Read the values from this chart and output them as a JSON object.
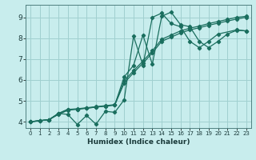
{
  "xlabel": "Humidex (Indice chaleur)",
  "bg_color": "#c8eded",
  "grid_color": "#a0d0d0",
  "line_color": "#1a6e5e",
  "xlim": [
    -0.5,
    23.5
  ],
  "ylim": [
    3.7,
    9.6
  ],
  "xticks": [
    0,
    1,
    2,
    3,
    4,
    5,
    6,
    7,
    8,
    9,
    10,
    11,
    12,
    13,
    14,
    15,
    16,
    17,
    18,
    19,
    20,
    21,
    22,
    23
  ],
  "yticks": [
    4,
    5,
    6,
    7,
    8,
    9
  ],
  "line1_x": [
    0,
    1,
    2,
    3,
    4,
    5,
    6,
    7,
    8,
    9,
    10,
    11,
    12,
    13,
    14,
    15,
    16,
    17,
    18,
    19,
    20,
    21,
    22,
    23
  ],
  "line1_y": [
    4.0,
    4.05,
    4.1,
    4.35,
    4.55,
    4.6,
    4.65,
    4.7,
    4.75,
    4.8,
    5.85,
    6.35,
    6.8,
    7.3,
    7.85,
    8.05,
    8.25,
    8.4,
    8.5,
    8.62,
    8.72,
    8.82,
    8.92,
    9.0
  ],
  "line2_x": [
    0,
    1,
    2,
    3,
    4,
    5,
    6,
    7,
    8,
    9,
    10,
    11,
    12,
    13,
    14,
    15,
    16,
    17,
    18,
    19,
    20,
    21,
    22,
    23
  ],
  "line2_y": [
    4.0,
    4.05,
    4.1,
    4.38,
    4.58,
    4.62,
    4.67,
    4.72,
    4.77,
    4.82,
    5.95,
    6.45,
    6.9,
    7.4,
    7.95,
    8.15,
    8.35,
    8.48,
    8.58,
    8.7,
    8.8,
    8.9,
    9.0,
    9.05
  ],
  "line3_x": [
    0,
    2,
    3,
    4,
    5,
    6,
    7,
    8,
    9,
    10,
    11,
    12,
    13,
    14,
    15,
    16,
    17,
    18,
    19,
    20,
    21,
    22,
    23
  ],
  "line3_y": [
    4.0,
    4.1,
    4.4,
    4.6,
    4.6,
    4.65,
    4.7,
    4.75,
    4.8,
    6.15,
    6.7,
    8.15,
    6.75,
    9.05,
    9.25,
    8.65,
    8.55,
    7.85,
    7.55,
    7.85,
    8.2,
    8.38,
    8.35
  ],
  "line4_x": [
    0,
    1,
    2,
    3,
    4,
    5,
    6,
    7,
    8,
    9,
    10,
    11,
    12,
    13,
    14,
    15,
    16,
    17,
    18,
    19,
    20,
    22,
    23
  ],
  "line4_y": [
    4.0,
    4.05,
    4.1,
    4.4,
    4.35,
    3.87,
    4.3,
    3.88,
    4.5,
    4.45,
    5.05,
    8.1,
    6.7,
    9.0,
    9.2,
    8.7,
    8.55,
    7.85,
    7.55,
    7.85,
    8.2,
    8.4,
    8.35
  ]
}
